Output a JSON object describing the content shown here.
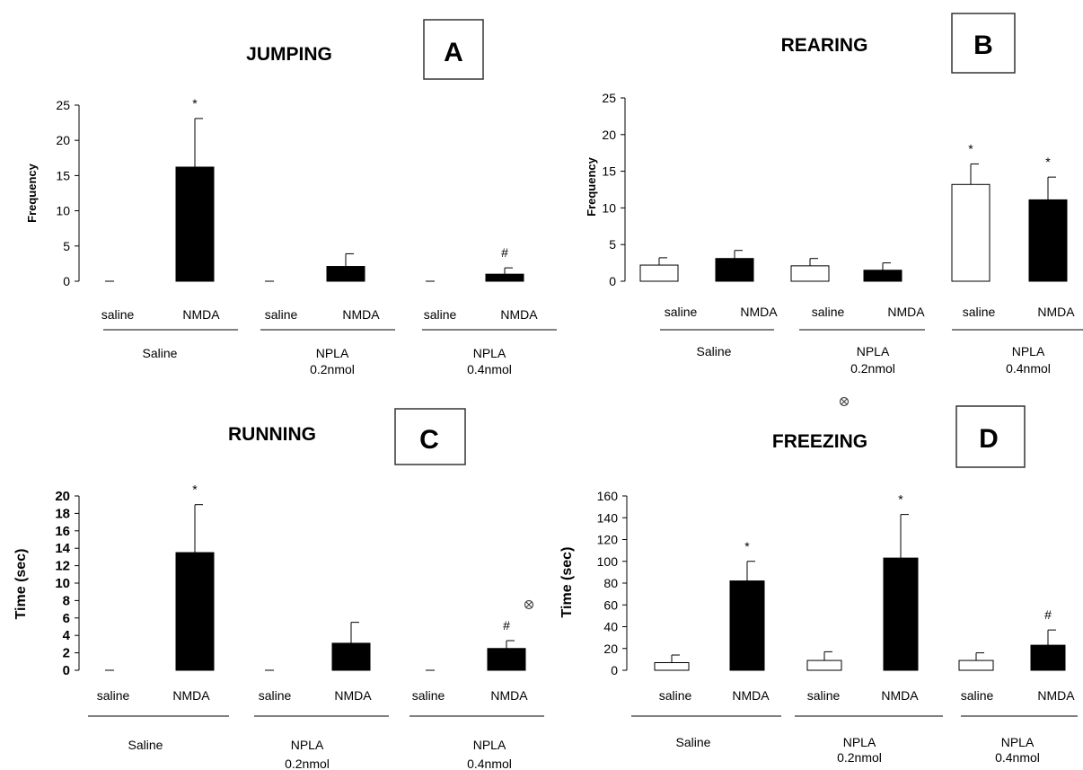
{
  "chart_data": [
    {
      "type": "bar",
      "title": "JUMPING",
      "panel_label": "A",
      "ylabel": "Frequency",
      "ylim": [
        0,
        25
      ],
      "yticks": [
        "0",
        "5",
        "10",
        "15",
        "20",
        "25"
      ],
      "categories": [
        "saline",
        "NMDA",
        "saline",
        "NMDA",
        "saline",
        "NMDA"
      ],
      "groups": [
        {
          "label": "Saline",
          "label2": ""
        },
        {
          "label": "NPLA",
          "label2": "0.2nmol"
        },
        {
          "label": "NPLA",
          "label2": "0.4nmol"
        }
      ],
      "values": [
        0,
        16.2,
        0,
        2.1,
        0,
        1.0
      ],
      "errors": [
        0,
        6.9,
        0,
        1.8,
        0,
        0.9
      ],
      "bar_colors": [
        "white",
        "black",
        "white",
        "black",
        "white",
        "black"
      ],
      "annotations": [
        "",
        "*",
        "",
        "",
        "",
        "#"
      ],
      "extra_marks": []
    },
    {
      "type": "bar",
      "title": "REARING",
      "panel_label": "B",
      "ylabel": "Frequency",
      "ylim": [
        0,
        25
      ],
      "yticks": [
        "0",
        "5",
        "10",
        "15",
        "20",
        "25"
      ],
      "categories": [
        "saline",
        "NMDA",
        "saline",
        "NMDA",
        "saline",
        "NMDA"
      ],
      "groups": [
        {
          "label": "Saline",
          "label2": ""
        },
        {
          "label": "NPLA",
          "label2": "0.2nmol"
        },
        {
          "label": "NPLA",
          "label2": "0.4nmol"
        }
      ],
      "values": [
        2.2,
        3.1,
        2.1,
        1.5,
        13.2,
        11.1
      ],
      "errors": [
        1.0,
        1.1,
        1.0,
        1.0,
        2.8,
        3.1
      ],
      "bar_colors": [
        "white",
        "black",
        "white",
        "black",
        "white",
        "black"
      ],
      "annotations": [
        "",
        "",
        "",
        "",
        "*",
        "*"
      ],
      "extra_marks": []
    },
    {
      "type": "bar",
      "title": "RUNNING",
      "panel_label": "C",
      "ylabel": "Time (sec)",
      "ylim": [
        0,
        20
      ],
      "yticks": [
        "0",
        "2",
        "4",
        "6",
        "8",
        "10",
        "12",
        "14",
        "16",
        "18",
        "20"
      ],
      "categories": [
        "saline",
        "NMDA",
        "saline",
        "NMDA",
        "saline",
        "NMDA"
      ],
      "groups": [
        {
          "label": "Saline",
          "label2": ""
        },
        {
          "label": "NPLA",
          "label2": "0.2nmol"
        },
        {
          "label": "NPLA",
          "label2": "0.4nmol"
        }
      ],
      "values": [
        0,
        13.5,
        0,
        3.1,
        0,
        2.5
      ],
      "errors": [
        0,
        5.5,
        0,
        2.4,
        0,
        0.9
      ],
      "bar_colors": [
        "white",
        "black",
        "white",
        "black",
        "white",
        "black"
      ],
      "annotations": [
        "",
        "*",
        "",
        "",
        "",
        "#"
      ],
      "extra_marks": [
        "⊗"
      ]
    },
    {
      "type": "bar",
      "title": "FREEZING",
      "panel_label": "D",
      "ylabel": "Time (sec)",
      "ylim": [
        0,
        160
      ],
      "yticks": [
        "0",
        "20",
        "40",
        "60",
        "80",
        "100",
        "120",
        "140",
        "160"
      ],
      "categories": [
        "saline",
        "NMDA",
        "saline",
        "NMDA",
        "saline",
        "NMDA"
      ],
      "groups": [
        {
          "label": "Saline",
          "label2": ""
        },
        {
          "label": "NPLA",
          "label2": "0.2nmol"
        },
        {
          "label": "NPLA",
          "label2": "0.4nmol"
        }
      ],
      "values": [
        7,
        82,
        9,
        103,
        9,
        23
      ],
      "errors": [
        7,
        18,
        8,
        40,
        7,
        14
      ],
      "bar_colors": [
        "white",
        "black",
        "white",
        "black",
        "white",
        "black"
      ],
      "annotations": [
        "",
        "*",
        "",
        "*",
        "",
        "#"
      ],
      "extra_marks": [
        "⊗"
      ]
    }
  ]
}
